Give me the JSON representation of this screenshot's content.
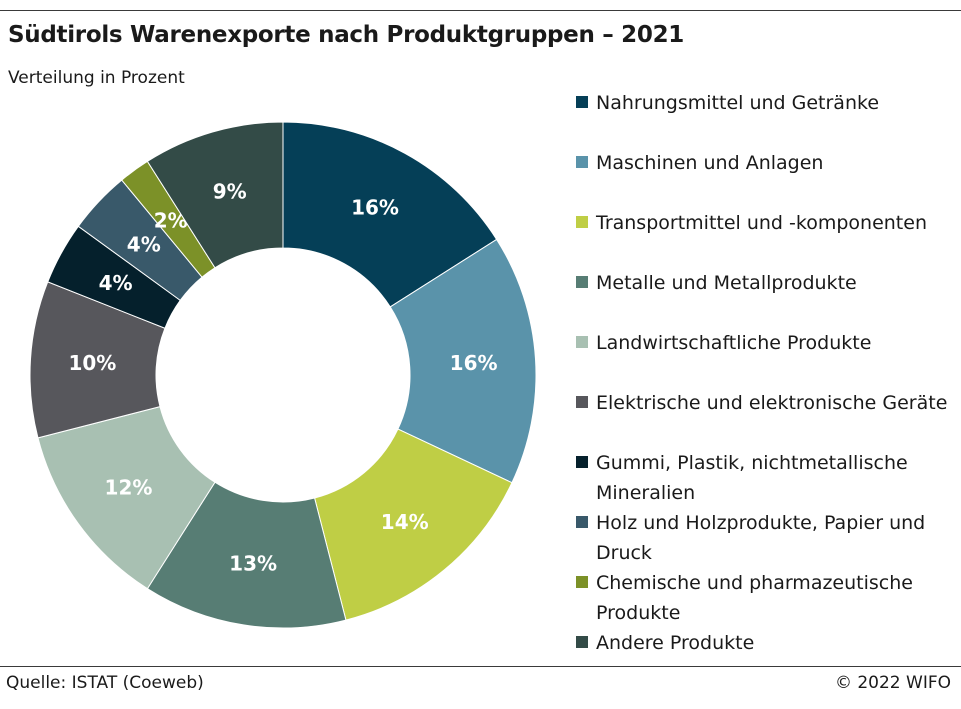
{
  "title": "Südtirols Warenexporte nach Produktgruppen – 2021",
  "subtitle": "Verteilung in Prozent",
  "source": "Quelle: ISTAT (Coeweb)",
  "copyright": "© 2022 WIFO",
  "chart_data": {
    "type": "pie",
    "donut": true,
    "title": "Südtirols Warenexporte nach Produktgruppen – 2021",
    "subtitle": "Verteilung in Prozent",
    "legend_position": "right",
    "categories": [
      "Nahrungsmittel und Getränke",
      "Maschinen und Anlagen",
      "Transportmittel und -komponenten",
      "Metalle und Metallprodukte",
      "Landwirtschaftliche Produkte",
      "Elektrische und elektronische Geräte",
      "Gummi, Plastik, nichtmetallische Mineralien",
      "Holz und Holzprodukte, Papier und Druck",
      "Chemische und pharmazeutische Produkte",
      "Andere Produkte"
    ],
    "values": [
      16,
      16,
      14,
      13,
      12,
      10,
      4,
      4,
      2,
      9
    ],
    "value_labels": [
      "16%",
      "16%",
      "14%",
      "13%",
      "12%",
      "10%",
      "4%",
      "4%",
      "2%",
      "9%"
    ],
    "colors": [
      "#053f57",
      "#5a93aa",
      "#bfce45",
      "#577d74",
      "#a8c0b2",
      "#57575c",
      "#05202c",
      "#39596a",
      "#7c9128",
      "#334b47"
    ]
  }
}
